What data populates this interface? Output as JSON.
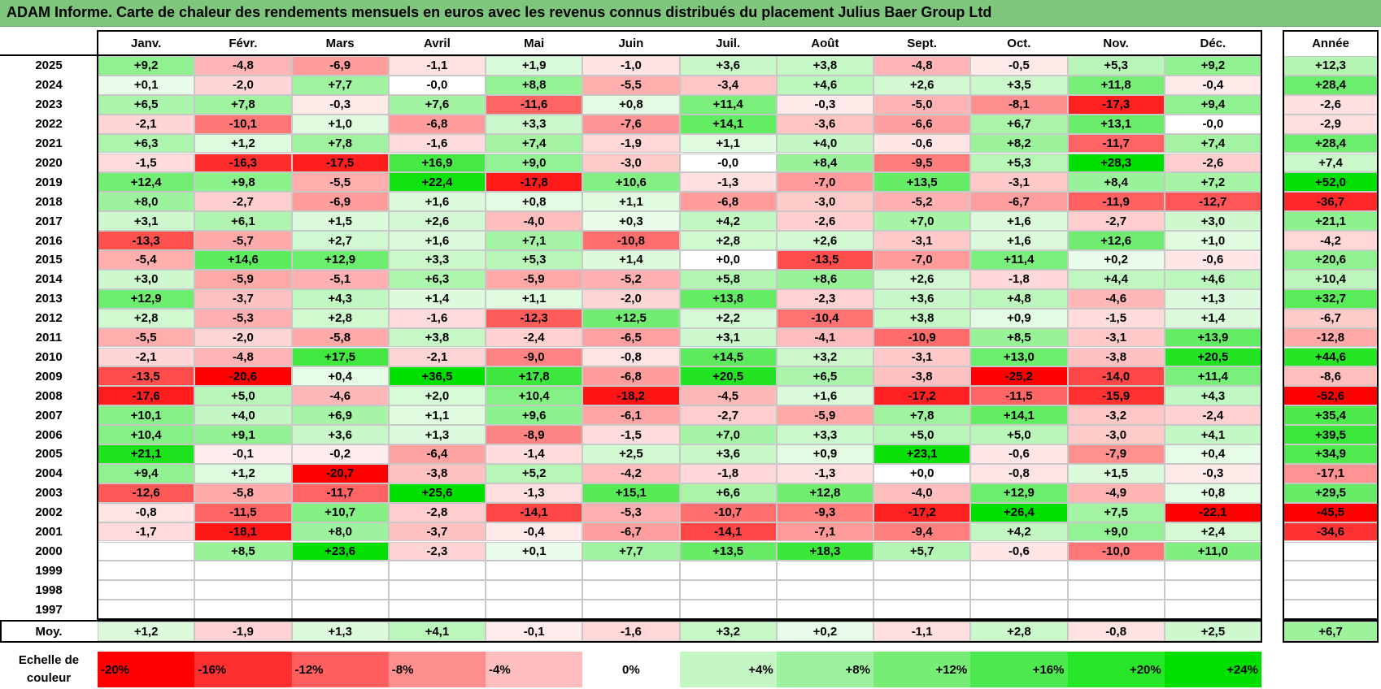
{
  "title": "ADAM Informe. Carte de chaleur des rendements mensuels en euros avec les revenus connus distribués du placement Julius Baer Group Ltd",
  "chart_data": {
    "type": "heatmap",
    "title": "ADAM Informe. Carte de chaleur des rendements mensuels en euros avec les revenus connus distribués du placement Julius Baer Group Ltd",
    "columns": [
      "Janv.",
      "Févr.",
      "Mars",
      "Avril",
      "Mai",
      "Juin",
      "Juil.",
      "Août",
      "Sept.",
      "Oct.",
      "Nov.",
      "Déc."
    ],
    "year_header": "Année",
    "rows": [
      {
        "year": "2025",
        "values": [
          "+9,2",
          "-4,8",
          "-6,9",
          "-1,1",
          "+1,9",
          "-1,0",
          "+3,6",
          "+3,8",
          "-4,8",
          "-0,5",
          "+5,3",
          "+9,2"
        ],
        "annual": "+12,3"
      },
      {
        "year": "2024",
        "values": [
          "+0,1",
          "-2,0",
          "+7,7",
          "-0,0",
          "+8,8",
          "-5,5",
          "-3,4",
          "+4,6",
          "+2,6",
          "+3,5",
          "+11,8",
          "-0,4"
        ],
        "annual": "+28,4"
      },
      {
        "year": "2023",
        "values": [
          "+6,5",
          "+7,8",
          "-0,3",
          "+7,6",
          "-11,6",
          "+0,8",
          "+11,4",
          "-0,3",
          "-5,0",
          "-8,1",
          "-17,3",
          "+9,4"
        ],
        "annual": "-2,6"
      },
      {
        "year": "2022",
        "values": [
          "-2,1",
          "-10,1",
          "+1,0",
          "-6,8",
          "+3,3",
          "-7,6",
          "+14,1",
          "-3,6",
          "-6,6",
          "+6,7",
          "+13,1",
          "-0,0"
        ],
        "annual": "-2,9"
      },
      {
        "year": "2021",
        "values": [
          "+6,3",
          "+1,2",
          "+7,8",
          "-1,6",
          "+7,4",
          "-1,9",
          "+1,1",
          "+4,0",
          "-0,6",
          "+8,2",
          "-11,7",
          "+7,4"
        ],
        "annual": "+28,4"
      },
      {
        "year": "2020",
        "values": [
          "-1,5",
          "-16,3",
          "-17,5",
          "+16,9",
          "+9,0",
          "-3,0",
          "-0,0",
          "+8,4",
          "-9,5",
          "+5,3",
          "+28,3",
          "-2,6"
        ],
        "annual": "+7,4"
      },
      {
        "year": "2019",
        "values": [
          "+12,4",
          "+9,8",
          "-5,5",
          "+22,4",
          "-17,8",
          "+10,6",
          "-1,3",
          "-7,0",
          "+13,5",
          "-3,1",
          "+8,4",
          "+7,2"
        ],
        "annual": "+52,0"
      },
      {
        "year": "2018",
        "values": [
          "+8,0",
          "-2,7",
          "-6,9",
          "+1,6",
          "+0,8",
          "+1,1",
          "-6,8",
          "-3,0",
          "-5,2",
          "-6,7",
          "-11,9",
          "-12,7"
        ],
        "annual": "-36,7"
      },
      {
        "year": "2017",
        "values": [
          "+3,1",
          "+6,1",
          "+1,5",
          "+2,6",
          "-4,0",
          "+0,3",
          "+4,2",
          "-2,6",
          "+7,0",
          "+1,6",
          "-2,7",
          "+3,0"
        ],
        "annual": "+21,1"
      },
      {
        "year": "2016",
        "values": [
          "-13,3",
          "-5,7",
          "+2,7",
          "+1,6",
          "+7,1",
          "-10,8",
          "+2,8",
          "+2,6",
          "-3,1",
          "+1,6",
          "+12,6",
          "+1,0"
        ],
        "annual": "-4,2"
      },
      {
        "year": "2015",
        "values": [
          "-5,4",
          "+14,6",
          "+12,9",
          "+3,3",
          "+5,3",
          "+1,4",
          "+0,0",
          "-13,5",
          "-7,0",
          "+11,4",
          "+0,2",
          "-0,6"
        ],
        "annual": "+20,6"
      },
      {
        "year": "2014",
        "values": [
          "+3,0",
          "-5,9",
          "-5,1",
          "+6,3",
          "-5,9",
          "-5,2",
          "+5,8",
          "+8,6",
          "+2,6",
          "-1,8",
          "+4,4",
          "+4,6"
        ],
        "annual": "+10,4"
      },
      {
        "year": "2013",
        "values": [
          "+12,9",
          "-3,7",
          "+4,3",
          "+1,4",
          "+1,1",
          "-2,0",
          "+13,8",
          "-2,3",
          "+3,6",
          "+4,8",
          "-4,6",
          "+1,3"
        ],
        "annual": "+32,7"
      },
      {
        "year": "2012",
        "values": [
          "+2,8",
          "-5,3",
          "+2,8",
          "-1,6",
          "-12,3",
          "+12,5",
          "+2,2",
          "-10,4",
          "+3,8",
          "+0,9",
          "-1,5",
          "+1,4"
        ],
        "annual": "-6,7"
      },
      {
        "year": "2011",
        "values": [
          "-5,5",
          "-2,0",
          "-5,8",
          "+3,8",
          "-2,4",
          "-6,5",
          "+3,1",
          "-4,1",
          "-10,9",
          "+8,5",
          "-3,1",
          "+13,9"
        ],
        "annual": "-12,8"
      },
      {
        "year": "2010",
        "values": [
          "-2,1",
          "-4,8",
          "+17,5",
          "-2,1",
          "-9,0",
          "-0,8",
          "+14,5",
          "+3,2",
          "-3,1",
          "+13,0",
          "-3,8",
          "+20,5"
        ],
        "annual": "+44,6"
      },
      {
        "year": "2009",
        "values": [
          "-13,5",
          "-20,6",
          "+0,4",
          "+36,5",
          "+17,8",
          "-6,8",
          "+20,5",
          "+6,5",
          "-3,8",
          "-25,2",
          "-14,0",
          "+11,4"
        ],
        "annual": "-8,6"
      },
      {
        "year": "2008",
        "values": [
          "-17,6",
          "+5,0",
          "-4,6",
          "+2,0",
          "+10,4",
          "-18,2",
          "-4,5",
          "+1,6",
          "-17,2",
          "-11,5",
          "-15,9",
          "+4,3"
        ],
        "annual": "-52,6"
      },
      {
        "year": "2007",
        "values": [
          "+10,1",
          "+4,0",
          "+6,9",
          "+1,1",
          "+9,6",
          "-6,1",
          "-2,7",
          "-5,9",
          "+7,8",
          "+14,1",
          "-3,2",
          "-2,4"
        ],
        "annual": "+35,4"
      },
      {
        "year": "2006",
        "values": [
          "+10,4",
          "+9,1",
          "+3,6",
          "+1,3",
          "-8,9",
          "-1,5",
          "+7,0",
          "+3,3",
          "+5,0",
          "+5,0",
          "-3,0",
          "+4,1"
        ],
        "annual": "+39,5"
      },
      {
        "year": "2005",
        "values": [
          "+21,1",
          "-0,1",
          "-0,2",
          "-6,4",
          "-1,4",
          "+2,5",
          "+3,6",
          "+0,9",
          "+23,1",
          "-0,6",
          "-7,9",
          "+0,4"
        ],
        "annual": "+34,9"
      },
      {
        "year": "2004",
        "values": [
          "+9,4",
          "+1,2",
          "-20,7",
          "-3,8",
          "+5,2",
          "-4,2",
          "-1,8",
          "-1,3",
          "+0,0",
          "-0,8",
          "+1,5",
          "-0,3"
        ],
        "annual": "-17,1"
      },
      {
        "year": "2003",
        "values": [
          "-12,6",
          "-5,8",
          "-11,7",
          "+25,6",
          "-1,3",
          "+15,1",
          "+6,6",
          "+12,8",
          "-4,0",
          "+12,9",
          "-4,9",
          "+0,8"
        ],
        "annual": "+29,5"
      },
      {
        "year": "2002",
        "values": [
          "-0,8",
          "-11,5",
          "+10,7",
          "-2,8",
          "-14,1",
          "-5,3",
          "-10,7",
          "-9,3",
          "-17,2",
          "+26,4",
          "+7,5",
          "-22,1"
        ],
        "annual": "-45,5"
      },
      {
        "year": "2001",
        "values": [
          "-1,7",
          "-18,1",
          "+8,0",
          "-3,7",
          "-0,4",
          "-6,7",
          "-14,1",
          "-7,1",
          "-9,4",
          "+4,2",
          "+9,0",
          "+2,4"
        ],
        "annual": "-34,6"
      },
      {
        "year": "2000",
        "values": [
          "",
          "+8,5",
          "+23,6",
          "-2,3",
          "+0,1",
          "+7,7",
          "+13,5",
          "+18,3",
          "+5,7",
          "-0,6",
          "-10,0",
          "+11,0"
        ],
        "annual": ""
      },
      {
        "year": "1999",
        "values": [
          "",
          "",
          "",
          "",
          "",
          "",
          "",
          "",
          "",
          "",
          "",
          ""
        ],
        "annual": ""
      },
      {
        "year": "1998",
        "values": [
          "",
          "",
          "",
          "",
          "",
          "",
          "",
          "",
          "",
          "",
          "",
          ""
        ],
        "annual": ""
      },
      {
        "year": "1997",
        "values": [
          "",
          "",
          "",
          "",
          "",
          "",
          "",
          "",
          "",
          "",
          "",
          ""
        ],
        "annual": ""
      }
    ],
    "average": {
      "label": "Moy.",
      "values": [
        "+1,2",
        "-1,9",
        "+1,3",
        "+4,1",
        "-0,1",
        "-1,6",
        "+3,2",
        "+0,2",
        "-1,1",
        "+2,8",
        "-0,8",
        "+2,5"
      ],
      "annual": "+6,7"
    },
    "color_scale": {
      "label": "Echelle de couleur",
      "steps": [
        {
          "label": "-20%",
          "value": -20
        },
        {
          "label": "-16%",
          "value": -16
        },
        {
          "label": "-12%",
          "value": -12
        },
        {
          "label": "-8%",
          "value": -8
        },
        {
          "label": "-4%",
          "value": -4
        },
        {
          "label": "0%",
          "value": 0
        },
        {
          "label": "+4%",
          "value": 4
        },
        {
          "label": "+8%",
          "value": 8
        },
        {
          "label": "+12%",
          "value": 12
        },
        {
          "label": "+16%",
          "value": 16
        },
        {
          "label": "+20%",
          "value": 20
        },
        {
          "label": "+24%",
          "value": 24
        }
      ],
      "negative_color": "#ff0000",
      "neutral_color": "#ffffff",
      "positive_color": "#00e000"
    }
  }
}
